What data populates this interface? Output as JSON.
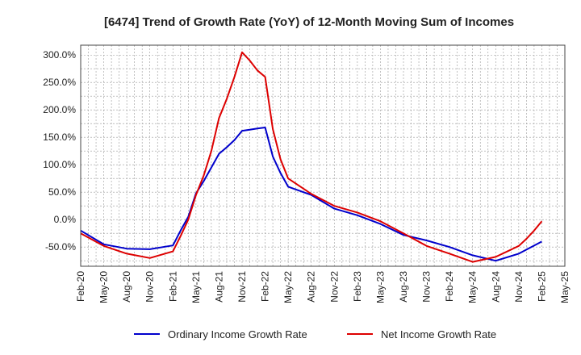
{
  "chart_data": {
    "type": "line",
    "title": "[6474]  Trend of Growth Rate (YoY) of 12-Month Moving Sum of Incomes",
    "xlabel": "",
    "ylabel": "",
    "x_tick_labels": [
      "Feb-20",
      "May-20",
      "Aug-20",
      "Nov-20",
      "Feb-21",
      "May-21",
      "Aug-21",
      "Nov-21",
      "Feb-22",
      "May-22",
      "Aug-22",
      "Nov-22",
      "Feb-23",
      "May-23",
      "Aug-23",
      "Nov-23",
      "Feb-24",
      "May-24",
      "Aug-24",
      "Nov-24",
      "Feb-25",
      "May-25"
    ],
    "y_tick_labels": [
      "-50.0%",
      "0.0%",
      "50.0%",
      "100.0%",
      "150.0%",
      "200.0%",
      "250.0%",
      "300.0%"
    ],
    "y_ticks": [
      -50,
      0,
      50,
      100,
      150,
      200,
      250,
      300
    ],
    "ylim": [
      -85,
      318
    ],
    "grid": true,
    "legend_position": "bottom",
    "series": [
      {
        "name": "Ordinary Income Growth Rate",
        "color": "#0000cc",
        "points": [
          [
            0,
            -20
          ],
          [
            3,
            -45
          ],
          [
            6,
            -53
          ],
          [
            9,
            -54
          ],
          [
            12,
            -47
          ],
          [
            13,
            -20
          ],
          [
            14,
            5
          ],
          [
            15,
            48
          ],
          [
            16,
            70
          ],
          [
            17,
            95
          ],
          [
            18,
            120
          ],
          [
            19,
            132
          ],
          [
            20,
            145
          ],
          [
            21,
            162
          ],
          [
            22,
            164
          ],
          [
            23,
            166
          ],
          [
            24,
            168
          ],
          [
            25,
            115
          ],
          [
            26,
            85
          ],
          [
            27,
            60
          ],
          [
            30,
            45
          ],
          [
            33,
            20
          ],
          [
            36,
            8
          ],
          [
            39,
            -8
          ],
          [
            42,
            -28
          ],
          [
            45,
            -38
          ],
          [
            48,
            -50
          ],
          [
            51,
            -65
          ],
          [
            54,
            -75
          ],
          [
            57,
            -62
          ],
          [
            60,
            -40
          ]
        ]
      },
      {
        "name": "Net Income Growth Rate",
        "color": "#dd0000",
        "points": [
          [
            0,
            -25
          ],
          [
            3,
            -48
          ],
          [
            6,
            -62
          ],
          [
            9,
            -70
          ],
          [
            12,
            -58
          ],
          [
            13,
            -30
          ],
          [
            14,
            0
          ],
          [
            15,
            45
          ],
          [
            16,
            80
          ],
          [
            17,
            125
          ],
          [
            18,
            185
          ],
          [
            19,
            220
          ],
          [
            20,
            260
          ],
          [
            21,
            305
          ],
          [
            22,
            290
          ],
          [
            23,
            272
          ],
          [
            24,
            260
          ],
          [
            25,
            165
          ],
          [
            26,
            110
          ],
          [
            27,
            75
          ],
          [
            30,
            47
          ],
          [
            33,
            25
          ],
          [
            36,
            13
          ],
          [
            39,
            -3
          ],
          [
            42,
            -25
          ],
          [
            45,
            -48
          ],
          [
            48,
            -62
          ],
          [
            51,
            -77
          ],
          [
            54,
            -68
          ],
          [
            57,
            -48
          ],
          [
            58,
            -35
          ],
          [
            59,
            -20
          ],
          [
            60,
            -3
          ]
        ]
      }
    ]
  }
}
